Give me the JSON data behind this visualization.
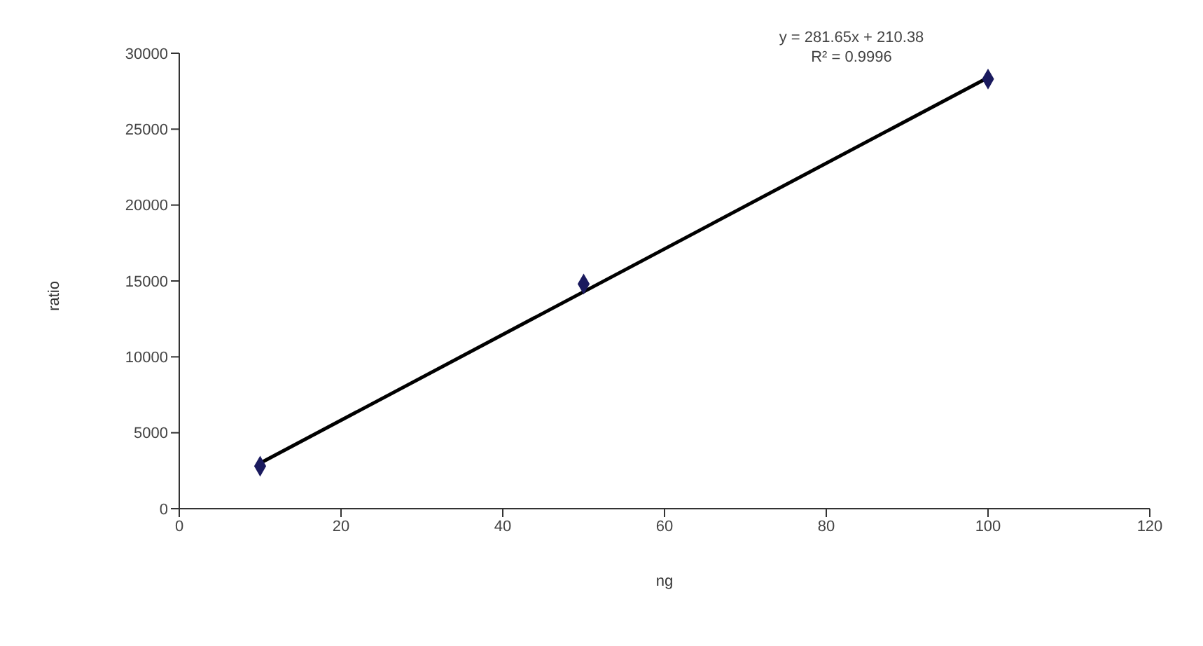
{
  "chart_data": {
    "type": "scatter",
    "xlabel": "ng",
    "ylabel": "ratio",
    "xlim": [
      0,
      120
    ],
    "xticks": [
      0,
      20,
      40,
      60,
      80,
      100,
      120
    ],
    "ylim": [
      0,
      30000
    ],
    "yticks": [
      0,
      5000,
      10000,
      15000,
      20000,
      25000,
      30000
    ],
    "grid": false,
    "legend": false,
    "marker": "diamond",
    "series": [
      {
        "color": "#1a1a5e",
        "x": [
          10,
          50,
          100
        ],
        "values": [
          2800,
          14800,
          28300
        ]
      },
      {
        "type": "line",
        "color": "#000000",
        "x": [
          10,
          100
        ],
        "values": [
          3000,
          28400
        ],
        "marker": "none"
      }
    ],
    "annotations": [
      "y = 281.65x + 210.38",
      "R² = 0.9996"
    ]
  }
}
